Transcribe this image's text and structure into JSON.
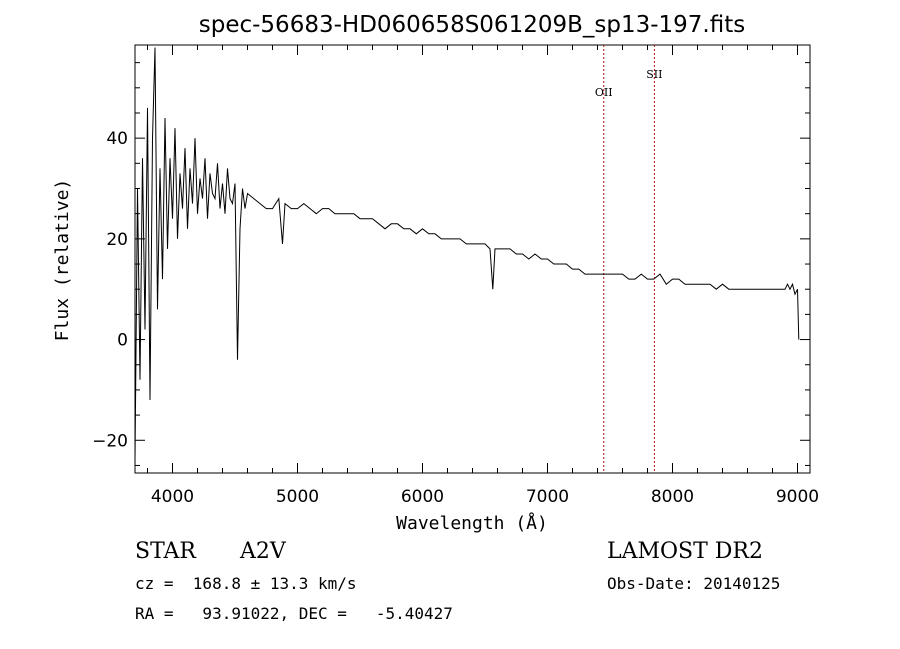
{
  "chart_data": {
    "type": "line",
    "title": "spec-56683-HD060658S061209B_sp13-197.fits",
    "xlabel": "Wavelength (Å)",
    "ylabel": "Flux (relative)",
    "xlim": [
      3700,
      9100
    ],
    "ylim": [
      -26.5,
      58.5
    ],
    "x_ticks": [
      4000,
      5000,
      6000,
      7000,
      8000,
      9000
    ],
    "y_ticks": [
      -20,
      0,
      20,
      40
    ],
    "grid": false,
    "legend": "none",
    "line_color": "#000000",
    "marker_color": "#b01010",
    "lines": [
      {
        "name": "OII",
        "x": 7450
      },
      {
        "name": "SII",
        "x": 7855
      }
    ],
    "series": [
      {
        "x": [
          3700,
          3720,
          3740,
          3760,
          3780,
          3800,
          3820,
          3840,
          3860,
          3880,
          3900,
          3920,
          3940,
          3960,
          3980,
          4000,
          4020,
          4040,
          4060,
          4080,
          4100,
          4120,
          4140,
          4160,
          4180,
          4200,
          4220,
          4240,
          4260,
          4280,
          4300,
          4320,
          4340,
          4360,
          4380,
          4400,
          4420,
          4440,
          4460,
          4480,
          4500,
          4520,
          4540,
          4560,
          4580,
          4600,
          4650,
          4700,
          4750,
          4800,
          4850,
          4880,
          4900,
          4950,
          5000,
          5050,
          5100,
          5150,
          5200,
          5250,
          5300,
          5350,
          5400,
          5450,
          5500,
          5550,
          5600,
          5650,
          5700,
          5750,
          5800,
          5850,
          5900,
          5950,
          6000,
          6050,
          6100,
          6150,
          6200,
          6250,
          6300,
          6350,
          6400,
          6450,
          6500,
          6540,
          6562,
          6580,
          6620,
          6650,
          6700,
          6750,
          6800,
          6850,
          6900,
          6950,
          7000,
          7050,
          7100,
          7150,
          7200,
          7250,
          7300,
          7350,
          7400,
          7450,
          7500,
          7550,
          7600,
          7650,
          7700,
          7750,
          7800,
          7850,
          7900,
          7950,
          8000,
          8050,
          8100,
          8150,
          8200,
          8250,
          8300,
          8350,
          8400,
          8450,
          8500,
          8550,
          8600,
          8650,
          8700,
          8750,
          8800,
          8850,
          8900,
          8920,
          8940,
          8960,
          8980,
          9000,
          9010
        ],
        "y": [
          -24,
          30,
          -8,
          36,
          2,
          46,
          -12,
          40,
          58,
          6,
          34,
          12,
          44,
          18,
          36,
          24,
          42,
          20,
          33,
          26,
          38,
          22,
          34,
          27,
          40,
          25,
          32,
          28,
          36,
          24,
          33,
          29,
          28,
          35,
          26,
          31,
          25,
          34,
          28,
          27,
          31,
          -4,
          22,
          30,
          26,
          29,
          28,
          27,
          26,
          26,
          28,
          19,
          27,
          26,
          26,
          27,
          26,
          25,
          26,
          26,
          25,
          25,
          25,
          25,
          24,
          24,
          24,
          23,
          22,
          23,
          23,
          22,
          22,
          21,
          22,
          21,
          21,
          20,
          20,
          20,
          20,
          19,
          19,
          19,
          19,
          18,
          10,
          18,
          18,
          18,
          18,
          17,
          17,
          16,
          17,
          16,
          16,
          15,
          15,
          15,
          14,
          14,
          13,
          13,
          13,
          13,
          13,
          13,
          13,
          12,
          12,
          13,
          12,
          12,
          13,
          11,
          12,
          12,
          11,
          11,
          11,
          11,
          11,
          10,
          11,
          10,
          10,
          10,
          10,
          10,
          10,
          10,
          10,
          10,
          10,
          11,
          10,
          11,
          9,
          10,
          0
        ]
      }
    ]
  },
  "info": {
    "object_class": "STAR",
    "subclass": "A2V",
    "survey": "LAMOST DR2",
    "redshift_line": "cz =  168.8 ± 13.3 km/s",
    "obs_date": "Obs-Date: 20140125",
    "coords": "RA =   93.91022, DEC =   -5.40427"
  }
}
